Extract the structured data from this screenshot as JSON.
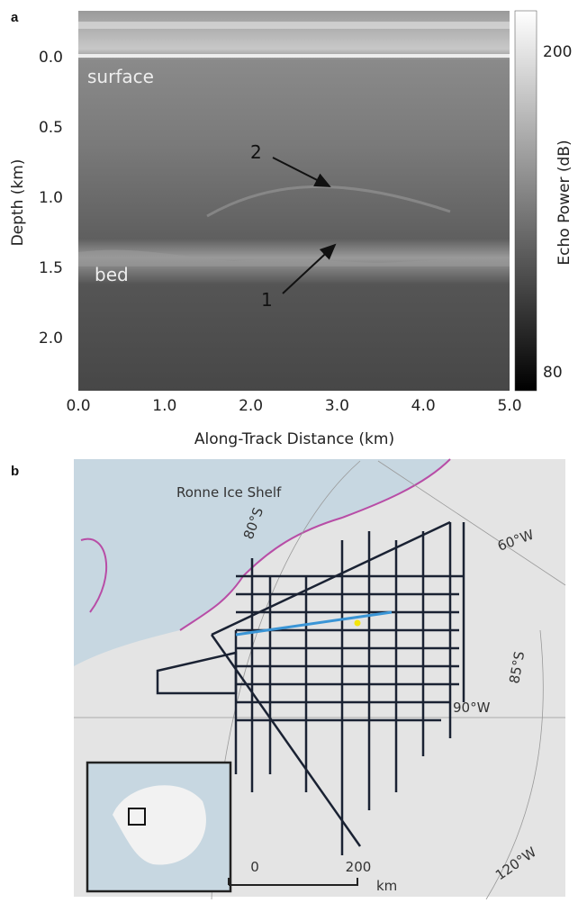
{
  "panel_a": {
    "label": "a",
    "y_axis_label": "Depth (km)",
    "x_axis_label": "Along-Track Distance (km)",
    "y_ticks": [
      "0.0",
      "0.5",
      "1.0",
      "1.5",
      "2.0"
    ],
    "x_ticks": [
      "0.0",
      "1.0",
      "2.0",
      "3.0",
      "4.0",
      "5.0"
    ],
    "colorbar_label": "Echo Power (dB)",
    "colorbar_ticks": [
      "200",
      "80"
    ],
    "annotations": [
      "surface",
      "bed",
      "2",
      "1"
    ]
  },
  "panel_b": {
    "label": "b",
    "place": "Ronne Ice Shelf",
    "graticule": [
      "80°S",
      "60°W",
      "85°S",
      "90°W",
      "120°W"
    ],
    "scale_bar": [
      "0",
      "200",
      "km"
    ]
  }
}
